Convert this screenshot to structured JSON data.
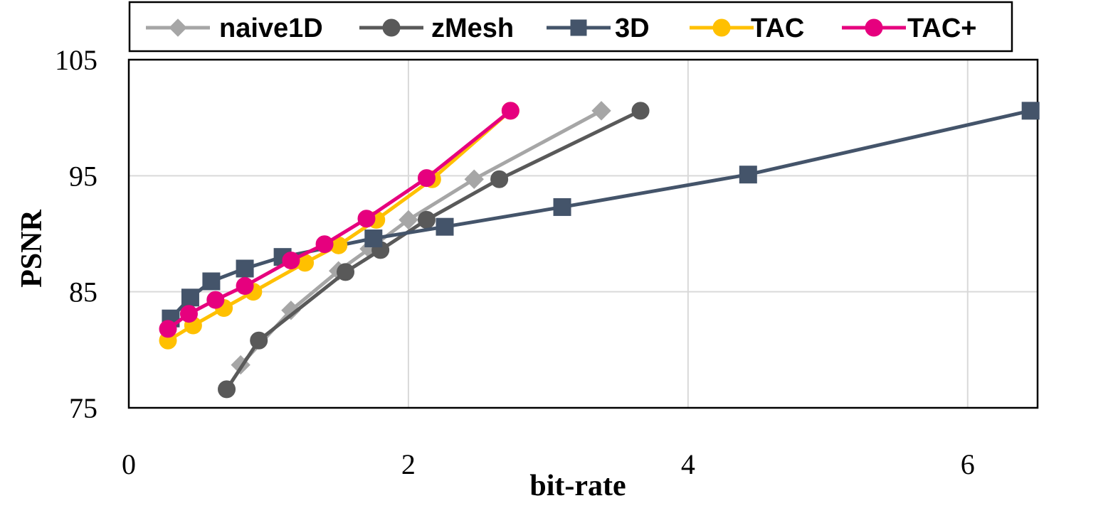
{
  "chart_data": {
    "type": "line",
    "title": "",
    "xlabel": "bit-rate",
    "ylabel": "PSNR",
    "xlim": [
      0,
      6.5
    ],
    "ylim": [
      75,
      105
    ],
    "xticks": [
      0,
      2,
      4,
      6
    ],
    "yticks": [
      75,
      85,
      95,
      105
    ],
    "grid": true,
    "legend_position": "top",
    "series": [
      {
        "name": "naive1D",
        "color": "#a6a6a6",
        "marker": "diamond",
        "x": [
          0.8,
          1.16,
          1.5,
          1.72,
          2.0,
          2.47,
          3.38
        ],
        "y": [
          78.7,
          83.4,
          86.8,
          88.7,
          91.2,
          94.7,
          100.6
        ]
      },
      {
        "name": "zMesh",
        "color": "#595959",
        "marker": "circle",
        "x": [
          0.7,
          0.93,
          1.55,
          1.8,
          2.13,
          2.65,
          3.66
        ],
        "y": [
          76.6,
          80.8,
          86.7,
          88.6,
          91.2,
          94.7,
          100.6
        ]
      },
      {
        "name": "3D",
        "color": "#44546a",
        "marker": "square",
        "x": [
          0.3,
          0.44,
          0.59,
          0.83,
          1.1,
          1.75,
          2.26,
          3.1,
          4.43,
          6.45
        ],
        "y": [
          82.7,
          84.5,
          85.9,
          87.0,
          88.0,
          89.6,
          90.6,
          92.3,
          95.1,
          100.6
        ]
      },
      {
        "name": "TAC",
        "color": "#ffc000",
        "marker": "circle",
        "x": [
          0.28,
          0.46,
          0.68,
          0.89,
          1.26,
          1.5,
          1.77,
          2.17,
          2.73
        ],
        "y": [
          80.8,
          82.1,
          83.6,
          85.0,
          87.5,
          89.0,
          91.2,
          94.7,
          100.6
        ]
      },
      {
        "name": "TAC+",
        "color": "#e6007e",
        "marker": "circle",
        "x": [
          0.28,
          0.43,
          0.62,
          0.83,
          1.16,
          1.4,
          1.7,
          2.13,
          2.73
        ],
        "y": [
          81.8,
          83.1,
          84.3,
          85.5,
          87.7,
          89.1,
          91.3,
          94.8,
          100.6
        ]
      }
    ]
  }
}
